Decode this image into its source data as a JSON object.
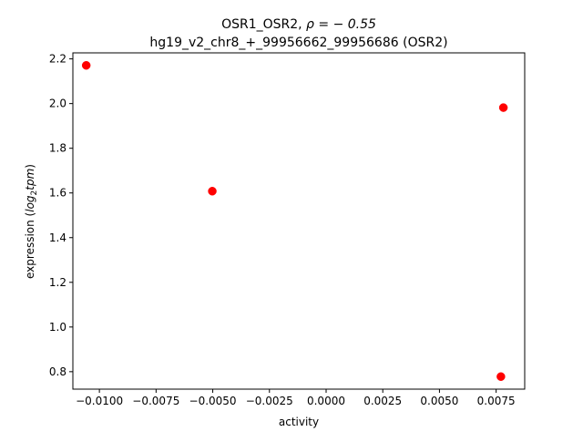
{
  "chart_data": {
    "type": "scatter",
    "title_line1_prefix": "OSR1_OSR2, ",
    "title_line1_rho": "ρ = − 0.55",
    "title_line2": "hg19_v2_chr8_+_99956662_99956686 (OSR2)",
    "xlabel": "activity",
    "ylabel_prefix": "expression (",
    "ylabel_math_log": "log",
    "ylabel_math_sub": "2",
    "ylabel_math_tpm": "tpm",
    "ylabel_suffix": ")",
    "xlim": [
      -0.01117,
      0.00876
    ],
    "ylim": [
      0.7219,
      2.227
    ],
    "x_ticks": [
      {
        "value": -0.01,
        "label": "−0.0100"
      },
      {
        "value": -0.0075,
        "label": "−0.0075"
      },
      {
        "value": -0.005,
        "label": "−0.0050"
      },
      {
        "value": -0.0025,
        "label": "−0.0025"
      },
      {
        "value": 0.0,
        "label": "0.0000"
      },
      {
        "value": 0.0025,
        "label": "0.0025"
      },
      {
        "value": 0.005,
        "label": "0.0050"
      },
      {
        "value": 0.0075,
        "label": "0.0075"
      }
    ],
    "y_ticks": [
      {
        "value": 0.8,
        "label": "0.8"
      },
      {
        "value": 1.0,
        "label": "1.0"
      },
      {
        "value": 1.2,
        "label": "1.2"
      },
      {
        "value": 1.4,
        "label": "1.4"
      },
      {
        "value": 1.6,
        "label": "1.6"
      },
      {
        "value": 1.8,
        "label": "1.8"
      },
      {
        "value": 2.0,
        "label": "2.0"
      },
      {
        "value": 2.2,
        "label": "2.2"
      }
    ],
    "points": [
      {
        "x": -0.01058,
        "y": 2.171
      },
      {
        "x": -0.00502,
        "y": 1.608
      },
      {
        "x": 0.00782,
        "y": 1.982
      },
      {
        "x": 0.00771,
        "y": 0.778
      }
    ],
    "marker_color": "#ff0000",
    "grid": false
  }
}
